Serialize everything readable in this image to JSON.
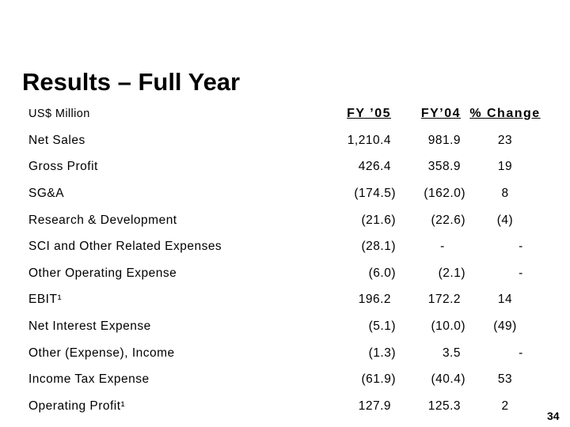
{
  "slide": {
    "title": "Results – Full Year",
    "units_label": "US$ Million",
    "page_number": "34"
  },
  "table": {
    "columns": [
      {
        "label": "FY ’05"
      },
      {
        "label": "FY’04"
      },
      {
        "label": "% Change"
      }
    ],
    "rows": [
      {
        "label": "Net Sales",
        "fy05": "1,210.4",
        "fy04": "981.9",
        "change": "23"
      },
      {
        "label": "Gross Profit",
        "fy05": "426.4",
        "fy04": "358.9",
        "change": "19"
      },
      {
        "label": "SG&A",
        "fy05": "(174.5)",
        "fy04": "(162.0)",
        "change": "8"
      },
      {
        "label": "Research & Development",
        "fy05": "(21.6)",
        "fy04": "(22.6)",
        "change": "(4)"
      },
      {
        "label": "SCI and Other Related Expenses",
        "fy05": "(28.1)",
        "fy04": "-",
        "change": "-"
      },
      {
        "label": "Other Operating Expense",
        "fy05": "(6.0)",
        "fy04": "(2.1)",
        "change": "-"
      },
      {
        "label": "EBIT¹",
        "fy05": "196.2",
        "fy04": "172.2",
        "change": "14"
      },
      {
        "label": "Net Interest Expense",
        "fy05": "(5.1)",
        "fy04": "(10.0)",
        "change": "(49)"
      },
      {
        "label": "Other (Expense), Income",
        "fy05": "(1.3)",
        "fy04": "3.5",
        "change": "-"
      },
      {
        "label": "Income Tax Expense",
        "fy05": "(61.9)",
        "fy04": "(40.4)",
        "change": "53"
      },
      {
        "label": "Operating Profit¹",
        "fy05": "127.9",
        "fy04": "125.3",
        "change": "2"
      }
    ]
  },
  "colors": {
    "background": "#ffffff",
    "text": "#000000"
  }
}
